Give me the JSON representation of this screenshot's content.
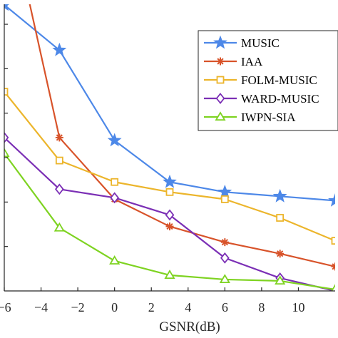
{
  "chart_data": {
    "type": "line",
    "title": "",
    "xlabel": "GSNR(dB)",
    "ylabel": "",
    "xlim": [
      -6,
      12
    ],
    "ylim": [
      0,
      1
    ],
    "x_ticks": [
      -6,
      -4,
      -2,
      0,
      2,
      4,
      6,
      8,
      10
    ],
    "x_tick_labels": [
      "−6",
      "−4",
      "−2",
      "0",
      "2",
      "4",
      "6",
      "8",
      "10"
    ],
    "grid": false,
    "legend_position": "top-right",
    "x": [
      -6,
      -3,
      0,
      3,
      6,
      9,
      12
    ],
    "series": [
      {
        "name": "MUSIC",
        "color": "#4d88e8",
        "marker": "star",
        "values": [
          0.998,
          0.84,
          0.525,
          0.38,
          0.345,
          0.33,
          0.315
        ]
      },
      {
        "name": "IAA",
        "color": "#d8532a",
        "marker": "asterisk",
        "values": [
          1.4,
          0.535,
          0.32,
          0.225,
          0.17,
          0.13,
          0.085
        ]
      },
      {
        "name": "FOLM-MUSIC",
        "color": "#ecb52b",
        "marker": "square",
        "values": [
          0.695,
          0.455,
          0.38,
          0.345,
          0.32,
          0.255,
          0.175
        ]
      },
      {
        "name": "WARD-MUSIC",
        "color": "#7b2fb5",
        "marker": "diamond",
        "values": [
          0.535,
          0.355,
          0.325,
          0.265,
          0.115,
          0.045,
          0.0
        ]
      },
      {
        "name": "IWPN-SIA",
        "color": "#7ed321",
        "marker": "triangle",
        "values": [
          0.48,
          0.22,
          0.105,
          0.055,
          0.04,
          0.035,
          0.005
        ]
      }
    ]
  }
}
